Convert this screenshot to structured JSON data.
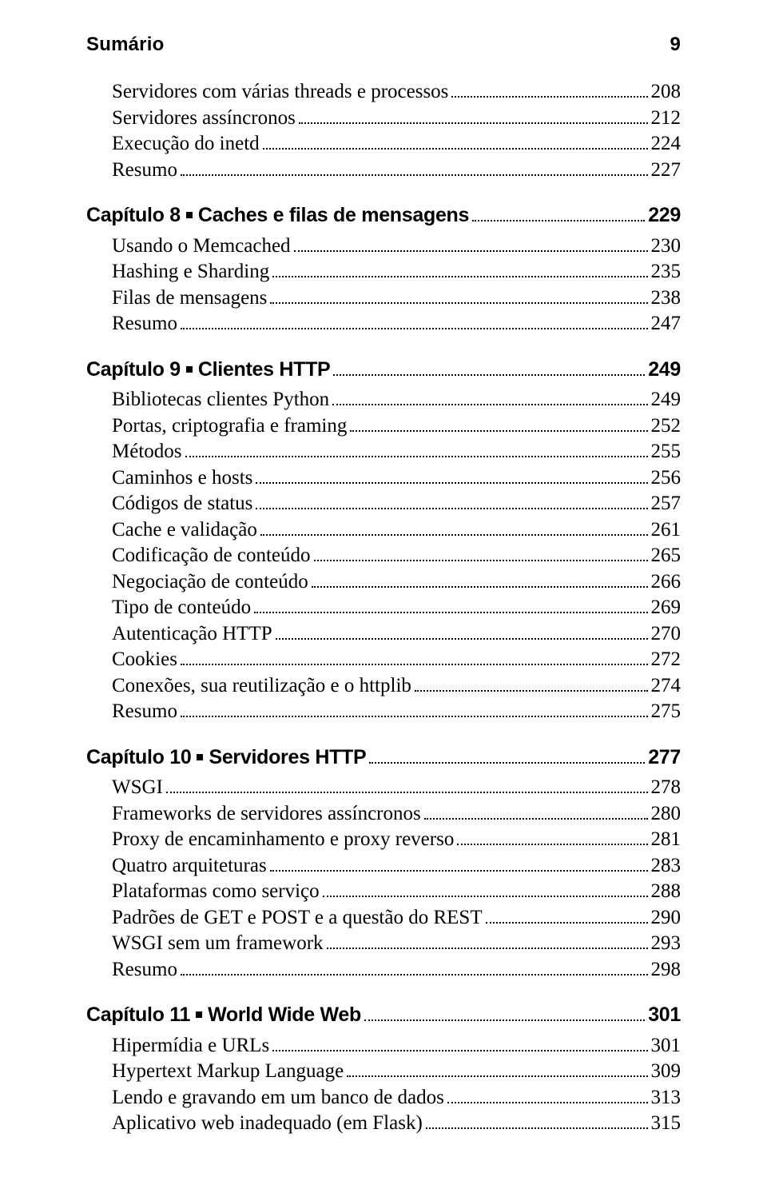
{
  "header": {
    "title": "Sumário",
    "page": "9"
  },
  "sections": [
    {
      "type": "group",
      "items": [
        {
          "label": "Servidores com várias threads e processos",
          "page": "208"
        },
        {
          "label": "Servidores assíncronos",
          "page": "212"
        },
        {
          "label": "Execução do inetd",
          "page": "224"
        },
        {
          "label": "Resumo",
          "page": "227"
        }
      ]
    },
    {
      "type": "chapter",
      "label_prefix": "Capítulo 8",
      "label_suffix": "Caches e filas de mensagens",
      "page": "229",
      "items": [
        {
          "label": "Usando o Memcached",
          "page": "230"
        },
        {
          "label": "Hashing e Sharding",
          "page": "235"
        },
        {
          "label": "Filas de mensagens",
          "page": "238"
        },
        {
          "label": "Resumo",
          "page": "247"
        }
      ]
    },
    {
      "type": "chapter",
      "label_prefix": "Capítulo 9",
      "label_suffix": "Clientes HTTP",
      "page": "249",
      "items": [
        {
          "label": "Bibliotecas clientes Python",
          "page": "249"
        },
        {
          "label": "Portas, criptografia e framing",
          "page": "252"
        },
        {
          "label": "Métodos",
          "page": "255"
        },
        {
          "label": "Caminhos e hosts",
          "page": "256"
        },
        {
          "label": "Códigos de status",
          "page": "257"
        },
        {
          "label": "Cache e validação",
          "page": "261"
        },
        {
          "label": "Codificação de conteúdo",
          "page": "265"
        },
        {
          "label": "Negociação de conteúdo",
          "page": "266"
        },
        {
          "label": "Tipo de conteúdo",
          "page": "269"
        },
        {
          "label": "Autenticação HTTP",
          "page": "270"
        },
        {
          "label": "Cookies",
          "page": "272"
        },
        {
          "label": "Conexões, sua reutilização e o httplib",
          "page": "274"
        },
        {
          "label": "Resumo",
          "page": "275"
        }
      ]
    },
    {
      "type": "chapter",
      "label_prefix": "Capítulo 10",
      "label_suffix": "Servidores HTTP",
      "page": "277",
      "items": [
        {
          "label": "WSGI",
          "page": "278"
        },
        {
          "label": "Frameworks de servidores assíncronos",
          "page": "280"
        },
        {
          "label": "Proxy de encaminhamento e proxy reverso",
          "page": "281"
        },
        {
          "label": "Quatro arquiteturas",
          "page": "283"
        },
        {
          "label": "Plataformas como serviço",
          "page": "288"
        },
        {
          "label": "Padrões de GET e POST e a questão do REST",
          "page": "290"
        },
        {
          "label": "WSGI sem um framework",
          "page": "293"
        },
        {
          "label": "Resumo",
          "page": "298"
        }
      ]
    },
    {
      "type": "chapter",
      "label_prefix": "Capítulo 11",
      "label_suffix": "World Wide Web",
      "page": "301",
      "items": [
        {
          "label": "Hipermídia e URLs",
          "page": "301"
        },
        {
          "label": "Hypertext Markup Language",
          "page": "309"
        },
        {
          "label": "Lendo e gravando em um banco de dados",
          "page": "313"
        },
        {
          "label": "Aplicativo web inadequado (em Flask)",
          "page": "315"
        }
      ]
    }
  ]
}
